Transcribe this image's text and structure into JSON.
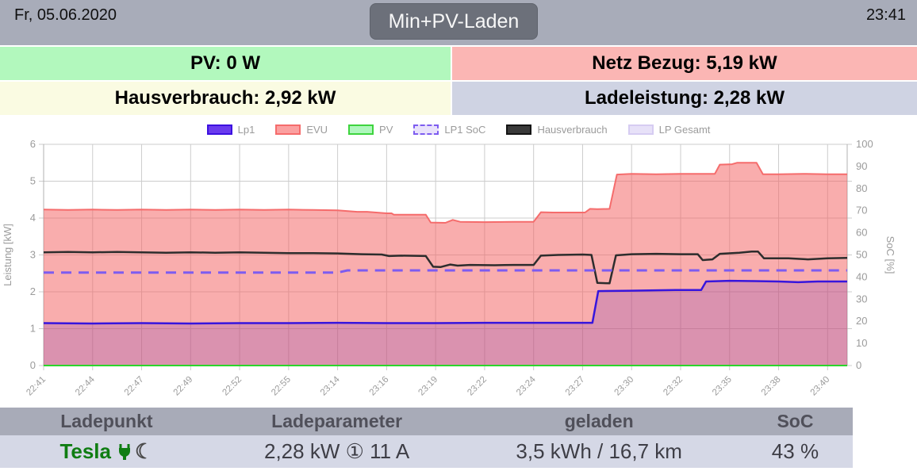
{
  "topbar": {
    "date": "Fr, 05.06.2020",
    "time": "23:41",
    "mode_button_label": "Min+PV-Laden"
  },
  "tiles": {
    "pv": "PV: 0 W",
    "grid": "Netz Bezug: 5,19 kW",
    "house": "Hausverbrauch: 2,92 kW",
    "charge": "Ladeleistung: 2,28 kW"
  },
  "chart_data": {
    "type": "area",
    "x_tick_labels": [
      "22:41",
      "22:44",
      "22:47",
      "22:49",
      "22:52",
      "22:55",
      "23:14",
      "23:16",
      "23:19",
      "23:22",
      "23:24",
      "23:27",
      "23:30",
      "23:32",
      "23:35",
      "23:38",
      "23:40"
    ],
    "x_max": 16.4,
    "left_axis": {
      "label": "Leistung [kW]",
      "min": 0,
      "max": 6,
      "step": 1,
      "grid": true
    },
    "right_axis": {
      "label": "SoC [%]",
      "min": 0,
      "max": 100,
      "step": 10,
      "grid": false
    },
    "legend": [
      {
        "label": "Lp1",
        "fill": "#6a3bee",
        "border": "#3c11e0",
        "dashed": false
      },
      {
        "label": "EVU",
        "fill": "#fba0a0",
        "border": "#f56c6c",
        "dashed": false
      },
      {
        "label": "PV",
        "fill": "#aef7bc",
        "border": "#3ed43e",
        "dashed": false
      },
      {
        "label": "LP1 SoC",
        "fill": "#e9e2fb",
        "border": "#7d5cf0",
        "dashed": true
      },
      {
        "label": "Hausverbrauch",
        "fill": "#3a3a3a",
        "border": "#141414",
        "dashed": false
      },
      {
        "label": "LP Gesamt",
        "fill": "#e7e1f8",
        "border": "#d6ccf2",
        "dashed": false
      }
    ],
    "series": [
      {
        "name": "EVU",
        "axis": "left",
        "color": "#f56c6c",
        "width": 2,
        "fill": "rgba(244,100,100,0.53)",
        "area": true,
        "points": [
          [
            0,
            4.23
          ],
          [
            0.5,
            4.22
          ],
          [
            1,
            4.23
          ],
          [
            1.5,
            4.22
          ],
          [
            2,
            4.23
          ],
          [
            2.5,
            4.22
          ],
          [
            3,
            4.23
          ],
          [
            3.5,
            4.22
          ],
          [
            4,
            4.23
          ],
          [
            4.5,
            4.22
          ],
          [
            5,
            4.23
          ],
          [
            5.5,
            4.22
          ],
          [
            6,
            4.21
          ],
          [
            6.4,
            4.17
          ],
          [
            6.6,
            4.17
          ],
          [
            7,
            4.13
          ],
          [
            7.1,
            4.13
          ],
          [
            7.15,
            4.09
          ],
          [
            7.8,
            4.09
          ],
          [
            7.9,
            3.88
          ],
          [
            8.2,
            3.87
          ],
          [
            8.35,
            3.95
          ],
          [
            8.5,
            3.9
          ],
          [
            9,
            3.89
          ],
          [
            9.6,
            3.9
          ],
          [
            10,
            3.9
          ],
          [
            10.15,
            4.16
          ],
          [
            10.4,
            4.15
          ],
          [
            11.05,
            4.15
          ],
          [
            11.15,
            4.25
          ],
          [
            11.3,
            4.24
          ],
          [
            11.55,
            4.25
          ],
          [
            11.7,
            5.18
          ],
          [
            12,
            5.2
          ],
          [
            12.5,
            5.19
          ],
          [
            13,
            5.2
          ],
          [
            13.7,
            5.2
          ],
          [
            13.8,
            5.45
          ],
          [
            14.05,
            5.46
          ],
          [
            14.15,
            5.5
          ],
          [
            14.55,
            5.5
          ],
          [
            14.68,
            5.19
          ],
          [
            15,
            5.19
          ],
          [
            15.5,
            5.2
          ],
          [
            16,
            5.19
          ],
          [
            16.4,
            5.19
          ]
        ]
      },
      {
        "name": "LP Gesamt",
        "axis": "left",
        "color": "none",
        "width": 0,
        "fill": "rgba(108,48,180,0.22)",
        "area": true,
        "points": [
          [
            0,
            1.15
          ],
          [
            1,
            1.14
          ],
          [
            2,
            1.15
          ],
          [
            3,
            1.14
          ],
          [
            4,
            1.15
          ],
          [
            5,
            1.15
          ],
          [
            6,
            1.16
          ],
          [
            7,
            1.15
          ],
          [
            8,
            1.15
          ],
          [
            9,
            1.16
          ],
          [
            10,
            1.16
          ],
          [
            11.2,
            1.16
          ],
          [
            11.32,
            2.02
          ],
          [
            12,
            2.03
          ],
          [
            12.5,
            2.04
          ],
          [
            12.9,
            2.05
          ],
          [
            13.42,
            2.05
          ],
          [
            13.52,
            2.28
          ],
          [
            14,
            2.3
          ],
          [
            14.5,
            2.29
          ],
          [
            15,
            2.28
          ],
          [
            15.4,
            2.26
          ],
          [
            15.8,
            2.28
          ],
          [
            16.4,
            2.28
          ]
        ]
      },
      {
        "name": "Lp1",
        "axis": "left",
        "color": "#3715dd",
        "width": 2.5,
        "fill": "none",
        "area": false,
        "points": [
          [
            0,
            1.15
          ],
          [
            1,
            1.14
          ],
          [
            2,
            1.15
          ],
          [
            3,
            1.14
          ],
          [
            4,
            1.15
          ],
          [
            5,
            1.15
          ],
          [
            6,
            1.16
          ],
          [
            7,
            1.15
          ],
          [
            8,
            1.15
          ],
          [
            9,
            1.16
          ],
          [
            10,
            1.16
          ],
          [
            11.2,
            1.16
          ],
          [
            11.32,
            2.02
          ],
          [
            12,
            2.03
          ],
          [
            12.5,
            2.04
          ],
          [
            12.9,
            2.05
          ],
          [
            13.42,
            2.05
          ],
          [
            13.52,
            2.28
          ],
          [
            14,
            2.3
          ],
          [
            14.5,
            2.29
          ],
          [
            15,
            2.28
          ],
          [
            15.4,
            2.26
          ],
          [
            15.8,
            2.28
          ],
          [
            16.4,
            2.28
          ]
        ]
      },
      {
        "name": "PV",
        "axis": "left",
        "color": "#2bd42b",
        "width": 2,
        "fill": "none",
        "area": false,
        "points": [
          [
            0,
            0
          ],
          [
            16.4,
            0
          ]
        ]
      },
      {
        "name": "Hausverbrauch",
        "axis": "left",
        "color": "#2d2d2d",
        "width": 2.5,
        "fill": "none",
        "area": false,
        "points": [
          [
            0,
            3.07
          ],
          [
            0.5,
            3.08
          ],
          [
            1,
            3.07
          ],
          [
            1.5,
            3.08
          ],
          [
            2,
            3.07
          ],
          [
            2.5,
            3.06
          ],
          [
            3,
            3.07
          ],
          [
            3.5,
            3.06
          ],
          [
            4,
            3.07
          ],
          [
            4.5,
            3.06
          ],
          [
            5,
            3.05
          ],
          [
            5.5,
            3.05
          ],
          [
            6,
            3.04
          ],
          [
            6.5,
            3.02
          ],
          [
            6.9,
            3.01
          ],
          [
            7.05,
            2.97
          ],
          [
            7.3,
            2.98
          ],
          [
            7.8,
            2.97
          ],
          [
            7.95,
            2.68
          ],
          [
            8.1,
            2.67
          ],
          [
            8.3,
            2.74
          ],
          [
            8.45,
            2.71
          ],
          [
            8.7,
            2.73
          ],
          [
            9.2,
            2.72
          ],
          [
            9.6,
            2.73
          ],
          [
            10,
            2.73
          ],
          [
            10.15,
            2.98
          ],
          [
            10.5,
            3
          ],
          [
            11,
            3.01
          ],
          [
            11.18,
            3
          ],
          [
            11.3,
            2.24
          ],
          [
            11.55,
            2.23
          ],
          [
            11.68,
            2.99
          ],
          [
            12,
            3.02
          ],
          [
            12.5,
            3.03
          ],
          [
            13,
            3.02
          ],
          [
            13.35,
            3.02
          ],
          [
            13.45,
            2.86
          ],
          [
            13.65,
            2.88
          ],
          [
            13.8,
            3.03
          ],
          [
            14.2,
            3.06
          ],
          [
            14.45,
            3.09
          ],
          [
            14.58,
            3.09
          ],
          [
            14.7,
            2.91
          ],
          [
            15.2,
            2.91
          ],
          [
            15.6,
            2.88
          ],
          [
            16,
            2.91
          ],
          [
            16.4,
            2.92
          ]
        ]
      },
      {
        "name": "LP1 SoC",
        "axis": "right",
        "color": "#7d5cf0",
        "width": 3,
        "dash": "13,9",
        "fill": "none",
        "area": false,
        "points": [
          [
            0,
            42
          ],
          [
            6,
            42
          ],
          [
            6.2,
            43
          ],
          [
            16.4,
            43
          ]
        ]
      }
    ]
  },
  "table": {
    "headers": [
      "Ladepunkt",
      "Ladeparameter",
      "geladen",
      "SoC"
    ],
    "row": {
      "vehicle": "Tesla",
      "moon_glyph": "☾",
      "ladeparameter": "2,28 kW ① 11 A",
      "geladen": "3,5 kWh / 16,7 km",
      "soc": "43 %"
    }
  }
}
